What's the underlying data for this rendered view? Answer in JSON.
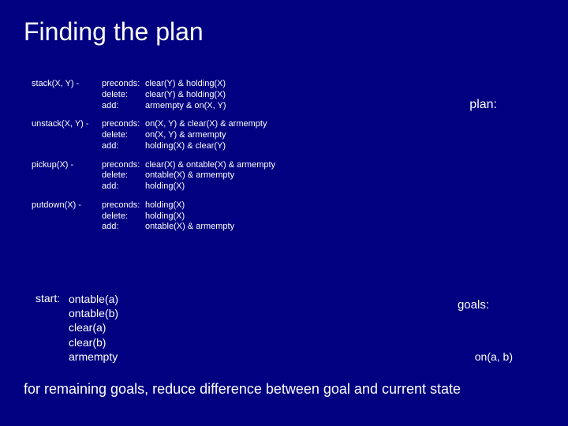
{
  "slide": {
    "title": "Finding the plan",
    "background_color": "#000080",
    "text_color": "#ffffff",
    "title_fontsize": 32,
    "operator_fontsize": 11,
    "body_fontsize": 14,
    "footer_fontsize": 18
  },
  "operators": [
    {
      "name": "stack(X, Y) -",
      "rows": [
        {
          "label": "preconds:",
          "value": "clear(Y) & holding(X)"
        },
        {
          "label": "delete:",
          "value": "clear(Y) & holding(X)"
        },
        {
          "label": "add:",
          "value": "armempty & on(X, Y)"
        }
      ]
    },
    {
      "name": "unstack(X, Y) -",
      "rows": [
        {
          "label": "preconds:",
          "value": "on(X, Y) & clear(X) & armempty"
        },
        {
          "label": "delete:",
          "value": "on(X, Y) & armempty"
        },
        {
          "label": "add:",
          "value": "holding(X) & clear(Y)"
        }
      ]
    },
    {
      "name": "pickup(X) -",
      "rows": [
        {
          "label": "preconds:",
          "value": "clear(X) & ontable(X) & armempty"
        },
        {
          "label": "delete:",
          "value": "ontable(X) & armempty"
        },
        {
          "label": "add:",
          "value": "holding(X)"
        }
      ]
    },
    {
      "name": "putdown(X) -",
      "rows": [
        {
          "label": "preconds:",
          "value": "holding(X)"
        },
        {
          "label": "delete:",
          "value": "holding(X)"
        },
        {
          "label": "add:",
          "value": "ontable(X) & armempty"
        }
      ]
    }
  ],
  "plan_label": "plan:",
  "start": {
    "label": "start:",
    "items": [
      "ontable(a)",
      "ontable(b)",
      "clear(a)",
      "clear(b)",
      "armempty"
    ]
  },
  "goals": {
    "label": "goals:",
    "items": [
      "on(a, b)"
    ]
  },
  "footer": "for remaining goals, reduce difference between goal and current state"
}
